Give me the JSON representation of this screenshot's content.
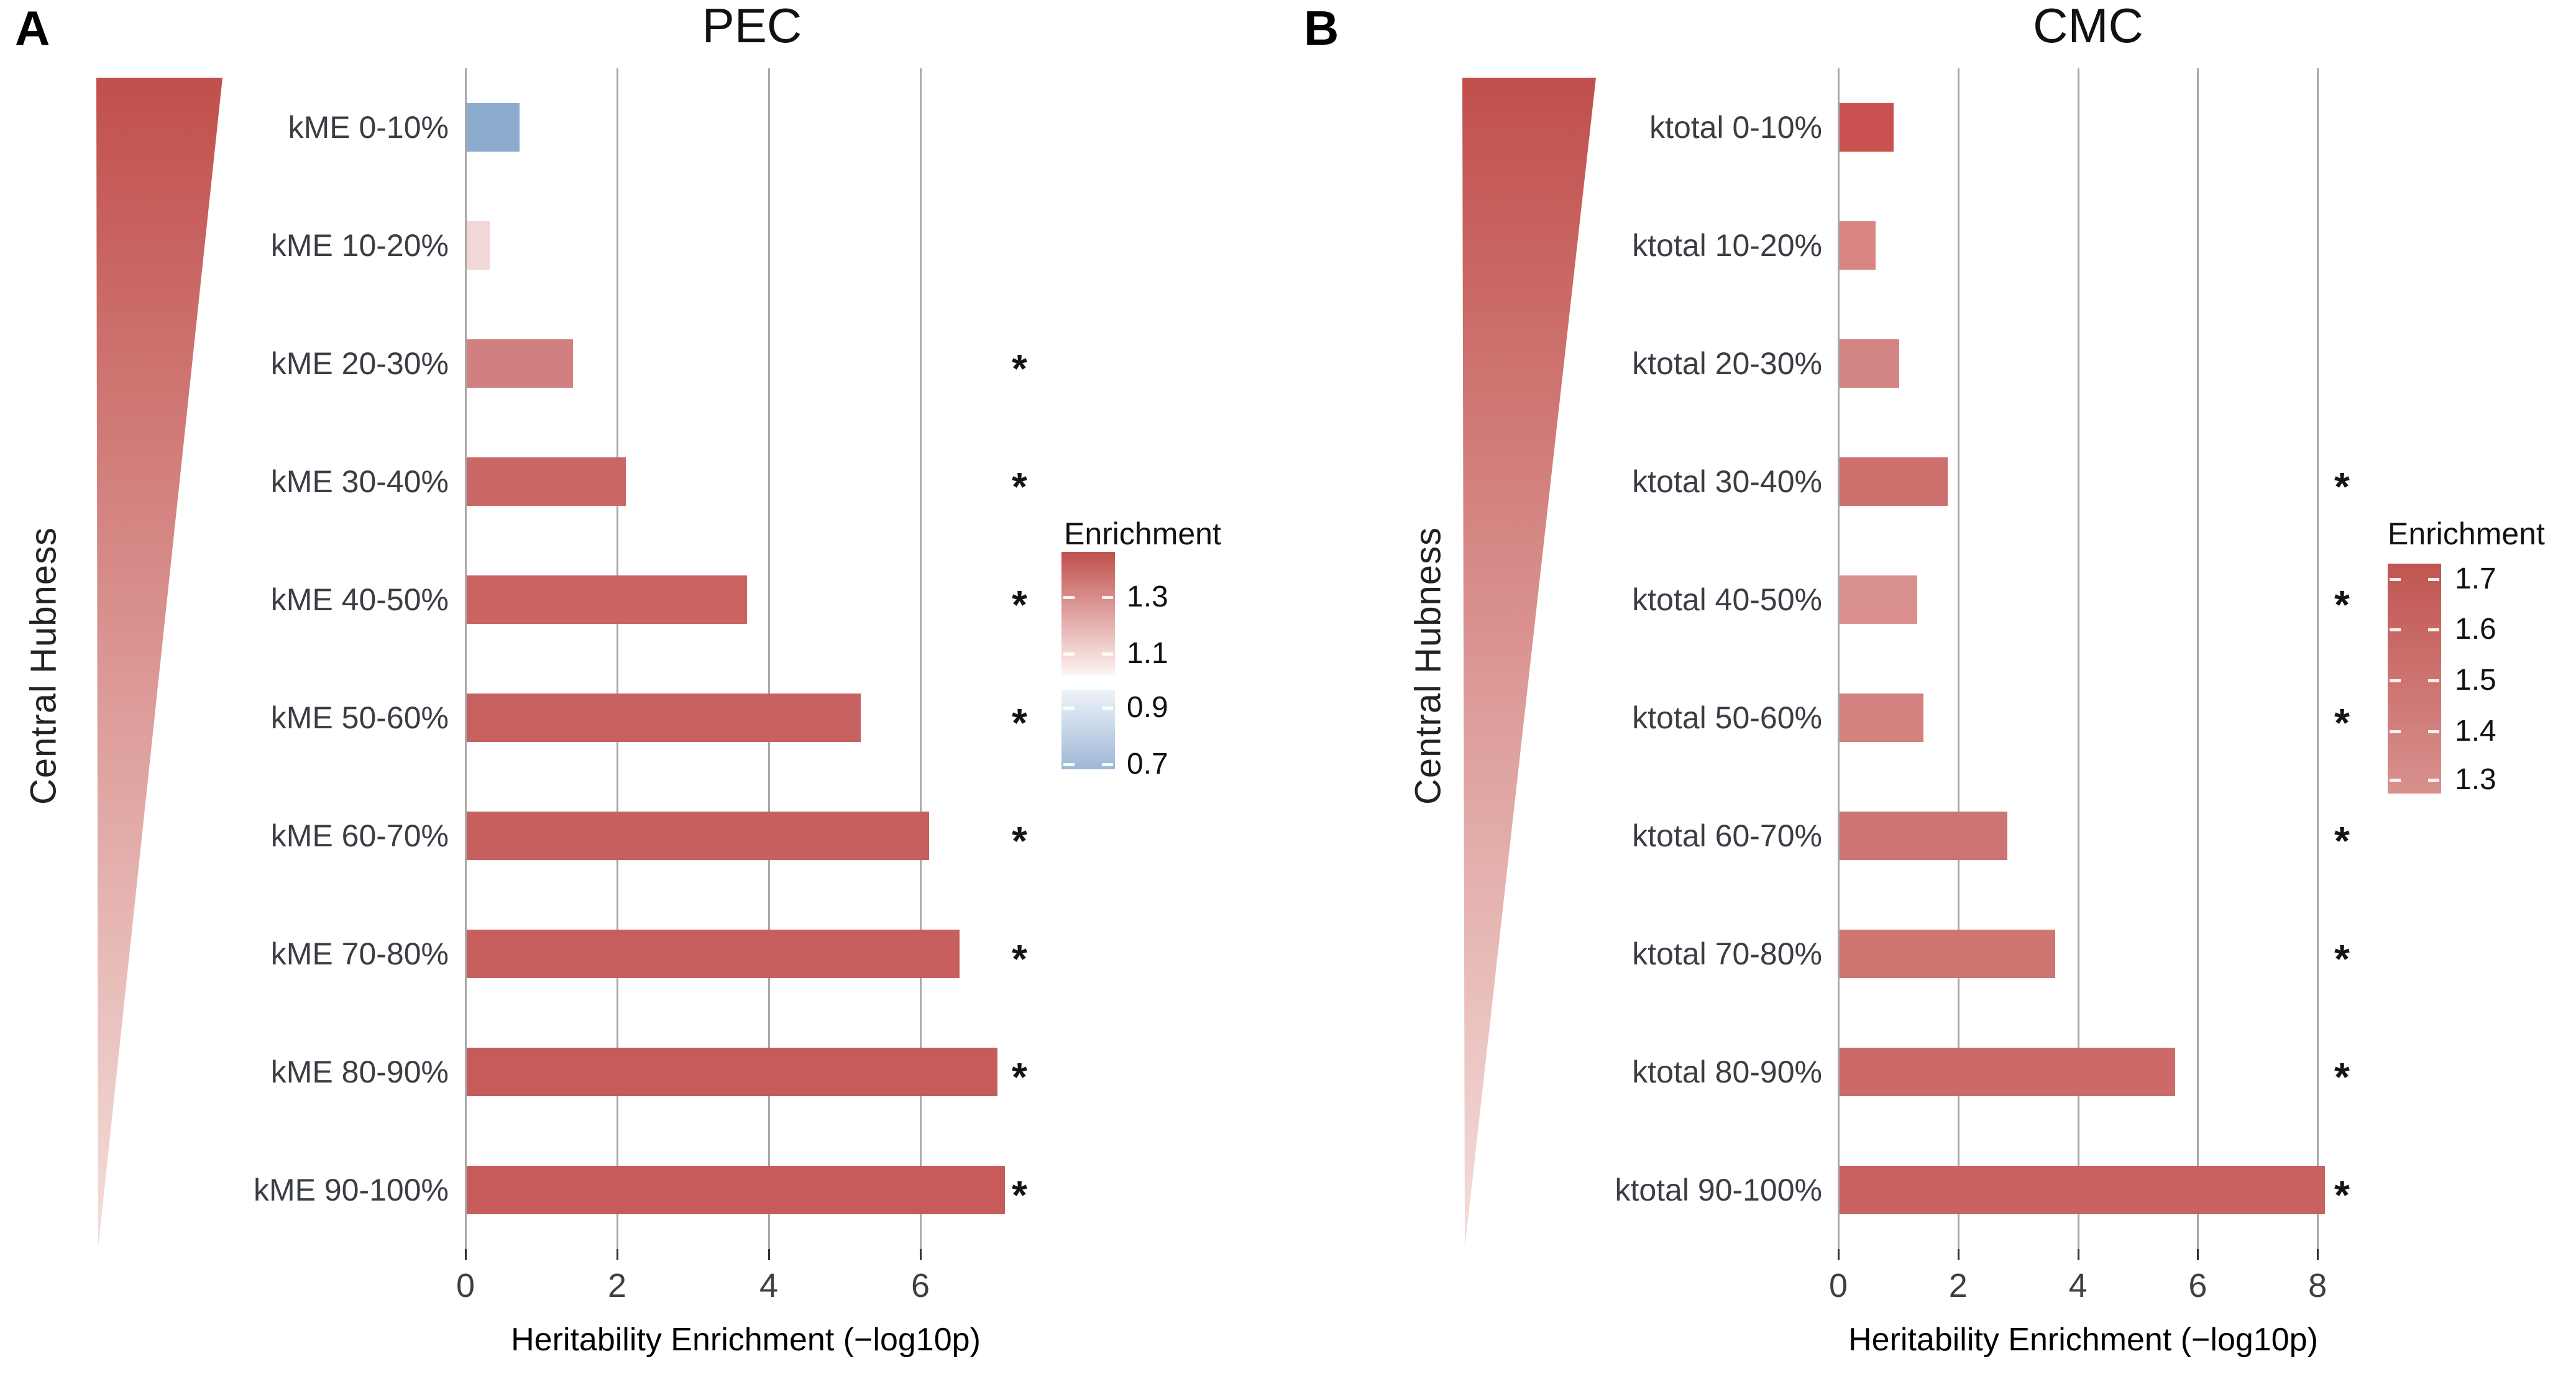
{
  "sig_marker": "*",
  "chart_data": [
    {
      "type": "bar",
      "orientation": "horizontal",
      "panel_label": "A",
      "title": "PEC",
      "xlabel": "Heritability Enrichment (−log10p)",
      "ylabel": "Central Hubness",
      "categories": [
        "kME 0-10%",
        "kME 10-20%",
        "kME 20-30%",
        "kME 30-40%",
        "kME 40-50%",
        "kME 50-60%",
        "kME 60-70%",
        "kME 70-80%",
        "kME 80-90%",
        "kME 90-100%"
      ],
      "values": [
        0.7,
        0.3,
        1.4,
        2.1,
        3.7,
        5.2,
        6.1,
        6.5,
        7.0,
        7.1
      ],
      "significant": [
        false,
        false,
        true,
        true,
        true,
        true,
        true,
        true,
        true,
        true
      ],
      "bar_colors": [
        "#8dabce",
        "#f3d6d6",
        "#d08080",
        "#ca6665",
        "#c96462",
        "#c66160",
        "#c75f5e",
        "#c75f5e",
        "#c65b5a",
        "#c65b5a"
      ],
      "x_ticks": [
        0,
        2,
        4,
        6
      ],
      "xlim": [
        0,
        7.8
      ],
      "grid": "vertical-major-only",
      "ylabel_gradient": [
        "#c14f4c",
        "#f4dedb"
      ],
      "legend": {
        "title": "Enrichment",
        "position": "right",
        "tick_labels": [
          "1.3",
          "1.1",
          "0.9",
          "0.7"
        ],
        "gradient_blocks": [
          {
            "from": "#c0504d",
            "to": "#fdf4f3"
          },
          {
            "from": "#eff3f8",
            "to": "#9db7d6"
          }
        ]
      }
    },
    {
      "type": "bar",
      "orientation": "horizontal",
      "panel_label": "B",
      "title": "CMC",
      "xlabel": "Heritability Enrichment (−log10p)",
      "ylabel": "Central Hubness",
      "categories": [
        "ktotal 0-10%",
        "ktotal 10-20%",
        "ktotal 20-30%",
        "ktotal 30-40%",
        "ktotal 40-50%",
        "ktotal 50-60%",
        "ktotal 60-70%",
        "ktotal 70-80%",
        "ktotal 80-90%",
        "ktotal 90-100%"
      ],
      "values": [
        0.9,
        0.6,
        1.0,
        1.8,
        1.3,
        1.4,
        2.8,
        3.6,
        5.6,
        8.1
      ],
      "significant": [
        false,
        false,
        false,
        true,
        true,
        true,
        true,
        true,
        true,
        true
      ],
      "bar_colors": [
        "#c9514f",
        "#d88583",
        "#d28583",
        "#cc6f6d",
        "#da918e",
        "#d2827f",
        "#cd7371",
        "#ce7572",
        "#cb6a68",
        "#c96361"
      ],
      "x_ticks": [
        0,
        2,
        4,
        6,
        8
      ],
      "xlim": [
        0,
        8.8
      ],
      "grid": "vertical-major-only",
      "ylabel_gradient": [
        "#c14f4c",
        "#f4dedb"
      ],
      "legend": {
        "title": "Enrichment",
        "position": "right",
        "tick_labels": [
          "1.7",
          "1.6",
          "1.5",
          "1.4",
          "1.3"
        ],
        "gradient_blocks": [
          {
            "from": "#c15551",
            "to": "#d8918e"
          }
        ]
      }
    }
  ]
}
